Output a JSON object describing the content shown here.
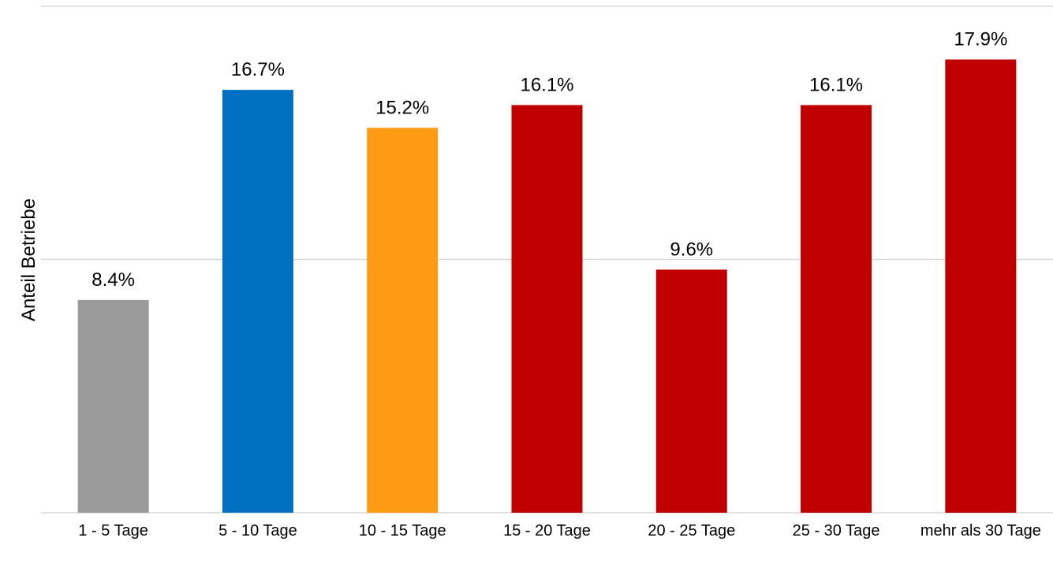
{
  "chart_data": {
    "type": "bar",
    "y_label": "Anteil Betriebe",
    "categories": [
      "1 - 5 Tage",
      "5 - 10 Tage",
      "10 - 15 Tage",
      "15 - 20 Tage",
      "20 - 25 Tage",
      "25 - 30 Tage",
      "mehr als 30 Tage"
    ],
    "values": [
      8.4,
      16.7,
      15.2,
      16.1,
      9.6,
      16.1,
      17.9
    ],
    "value_labels": [
      "8.4%",
      "16.7%",
      "15.2%",
      "16.1%",
      "9.6%",
      "16.1%",
      "17.9%"
    ],
    "colors": [
      "#9b9b9b",
      "#0070c0",
      "#ff9a15",
      "#c00000",
      "#c00000",
      "#c00000",
      "#c00000"
    ],
    "ylim": [
      0,
      20
    ],
    "yticks": [
      0,
      10,
      20
    ],
    "grid": true
  }
}
